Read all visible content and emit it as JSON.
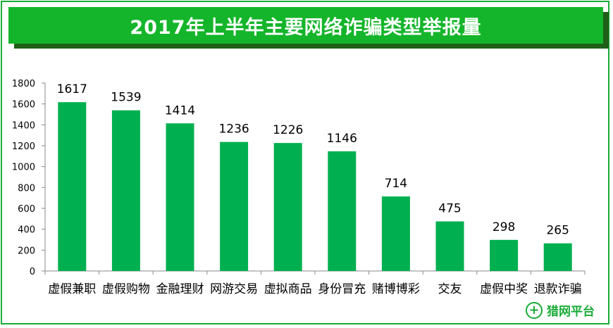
{
  "title": "2017年上半年主要网络诈骗类型举报量",
  "brand": {
    "name": "猎网平台",
    "icon": "cross-circle-icon",
    "color": "#1aab38"
  },
  "colors": {
    "bar": "#00b050",
    "title_bg": "#14b52a",
    "title_shadow": "#1f5f17",
    "frame": "#1aab38"
  },
  "chart_data": {
    "type": "bar",
    "title": "2017年上半年主要网络诈骗类型举报量",
    "xlabel": "",
    "ylabel": "",
    "categories": [
      "虚假兼职",
      "虚假购物",
      "金融理财",
      "网游交易",
      "虚拟商品",
      "身份冒充",
      "赌博博彩",
      "交友",
      "虚假中奖",
      "退款诈骗"
    ],
    "values": [
      1617,
      1539,
      1414,
      1236,
      1226,
      1146,
      714,
      475,
      298,
      265
    ],
    "ylim": [
      0,
      1800
    ],
    "yticks": [
      0,
      200,
      400,
      600,
      800,
      1000,
      1200,
      1400,
      1600,
      1800
    ],
    "data_labels": true,
    "grid": false,
    "legend": "none"
  }
}
